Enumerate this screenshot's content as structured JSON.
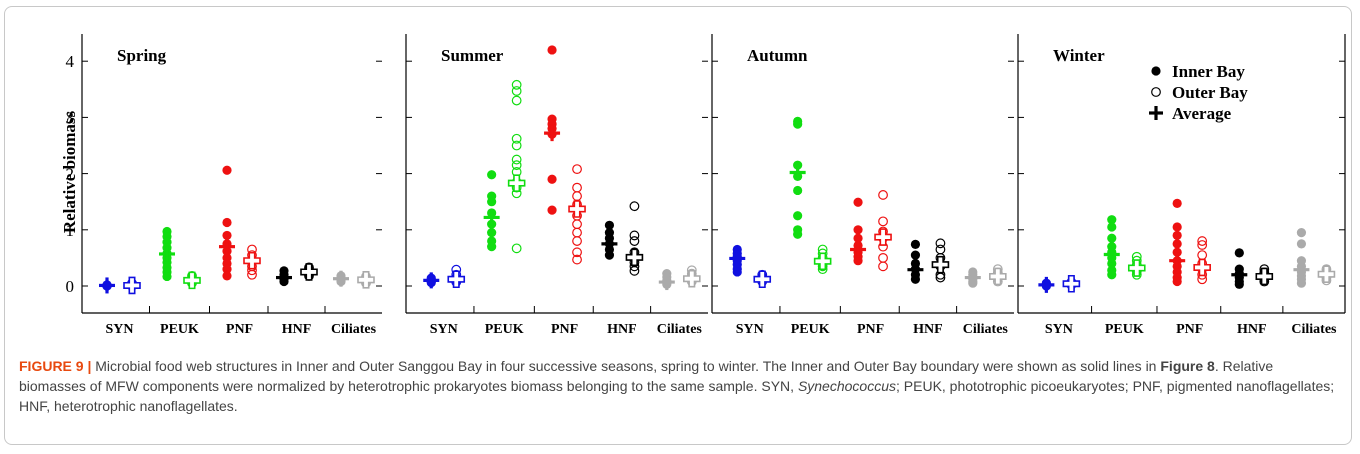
{
  "figure": {
    "caption_label": "FIGURE 9 |",
    "caption_part1": "Microbial food web structures in Inner and Outer Sanggou Bay in four successive seasons, spring to winter. The Inner and Outer Bay boundary were shown as solid lines in",
    "caption_ref": "Figure 8",
    "caption_part2": ". Relative biomasses of MFW components were normalized by heterotrophic prokaryotes biomass belonging to the same sample.",
    "caption_part3": "SYN,",
    "caption_syn": "Synechococcus",
    "caption_part4": "; PEUK, phototrophic picoeukaryotes; PNF, pigmented nanoflagellates; HNF, heterotrophic nanoflagellates."
  },
  "colors": {
    "SYN": "#1010e0",
    "PEUK": "#11dd11",
    "PNF": "#ee1111",
    "HNF": "#000000",
    "Ciliates": "#aaaaaa"
  },
  "chart_data": {
    "type": "scatter",
    "ylabel": "Relative biomass",
    "ylim": [
      0,
      4.5
    ],
    "yticks": [
      "0",
      "1",
      "2",
      "3",
      "4"
    ],
    "categories": [
      "SYN",
      "PEUK",
      "PNF",
      "HNF",
      "Ciliates"
    ],
    "legend": {
      "position": "top-right (Winter panel)",
      "items": [
        "Inner Bay",
        "Outer Bay",
        "Average"
      ]
    },
    "panels": [
      {
        "title": "Spring",
        "groups": [
          {
            "category": "SYN",
            "inner": [
              0.02,
              0.01,
              0.0,
              0.0,
              0.01
            ],
            "inner_avg": 0.01,
            "outer": [
              0.05,
              0.02,
              0.0,
              0.0
            ],
            "outer_avg": 0.01
          },
          {
            "category": "PEUK",
            "inner": [
              0.97,
              0.88,
              0.78,
              0.68,
              0.58,
              0.5,
              0.42,
              0.33,
              0.25,
              0.17
            ],
            "inner_avg": 0.57,
            "outer": [
              0.18,
              0.14,
              0.1,
              0.07,
              0.05
            ],
            "outer_avg": 0.1
          },
          {
            "category": "PNF",
            "inner": [
              2.06,
              1.13,
              0.9,
              0.75,
              0.62,
              0.5,
              0.4,
              0.3,
              0.18
            ],
            "inner_avg": 0.7,
            "outer": [
              0.65,
              0.55,
              0.45,
              0.35,
              0.28,
              0.2
            ],
            "outer_avg": 0.45
          },
          {
            "category": "HNF",
            "inner": [
              0.27,
              0.2,
              0.15,
              0.12,
              0.08
            ],
            "inner_avg": 0.15,
            "outer": [
              0.33,
              0.3,
              0.26,
              0.22,
              0.18
            ],
            "outer_avg": 0.25
          },
          {
            "category": "Ciliates",
            "inner": [
              0.18,
              0.15,
              0.12,
              0.1,
              0.08
            ],
            "inner_avg": 0.13,
            "outer": [
              0.17,
              0.13,
              0.1,
              0.07,
              0.05
            ],
            "outer_avg": 0.11
          }
        ]
      },
      {
        "title": "Summer",
        "groups": [
          {
            "category": "SYN",
            "inner": [
              0.14,
              0.11,
              0.08,
              0.06
            ],
            "inner_avg": 0.1,
            "outer": [
              0.29,
              0.2,
              0.14,
              0.1,
              0.07
            ],
            "outer_avg": 0.12
          },
          {
            "category": "PEUK",
            "inner": [
              1.98,
              1.6,
              1.5,
              1.3,
              1.1,
              0.95,
              0.8,
              0.7
            ],
            "inner_avg": 1.22,
            "outer": [
              3.58,
              3.47,
              3.3,
              2.62,
              2.5,
              2.25,
              2.15,
              2.03,
              1.85,
              1.75,
              1.65,
              0.67
            ],
            "outer_avg": 1.83
          },
          {
            "category": "PNF",
            "inner": [
              4.2,
              2.97,
              2.88,
              2.8,
              2.7,
              1.9,
              1.35
            ],
            "inner_avg": 2.72,
            "outer": [
              2.08,
              1.75,
              1.6,
              1.45,
              1.25,
              1.1,
              0.95,
              0.8,
              0.6,
              0.47
            ],
            "outer_avg": 1.37
          },
          {
            "category": "HNF",
            "inner": [
              1.08,
              0.95,
              0.85,
              0.75,
              0.65,
              0.55
            ],
            "inner_avg": 0.75,
            "outer": [
              1.42,
              0.9,
              0.8,
              0.6,
              0.5,
              0.42,
              0.35,
              0.27
            ],
            "outer_avg": 0.51
          },
          {
            "category": "Ciliates",
            "inner": [
              0.22,
              0.16,
              0.1,
              0.06,
              0.03
            ],
            "inner_avg": 0.07,
            "outer": [
              0.28,
              0.22,
              0.17,
              0.12,
              0.08
            ],
            "outer_avg": 0.13
          }
        ]
      },
      {
        "title": "Autumn",
        "groups": [
          {
            "category": "SYN",
            "inner": [
              0.65,
              0.58,
              0.52,
              0.45,
              0.38,
              0.3,
              0.25
            ],
            "inner_avg": 0.49,
            "outer": [
              0.2,
              0.16,
              0.12,
              0.08
            ],
            "outer_avg": 0.12
          },
          {
            "category": "PEUK",
            "inner": [
              2.93,
              2.88,
              2.15,
              1.95,
              1.7,
              1.25,
              1.0,
              0.92
            ],
            "inner_avg": 2.02,
            "outer": [
              0.65,
              0.58,
              0.5,
              0.45,
              0.4,
              0.35,
              0.3
            ],
            "outer_avg": 0.44
          },
          {
            "category": "PNF",
            "inner": [
              1.49,
              1.0,
              0.85,
              0.72,
              0.6,
              0.52,
              0.45
            ],
            "inner_avg": 0.65,
            "outer": [
              1.62,
              1.15,
              0.97,
              0.85,
              0.7,
              0.5,
              0.35
            ],
            "outer_avg": 0.87
          },
          {
            "category": "HNF",
            "inner": [
              0.74,
              0.55,
              0.4,
              0.3,
              0.2,
              0.12
            ],
            "inner_avg": 0.29,
            "outer": [
              0.76,
              0.65,
              0.5,
              0.35,
              0.2,
              0.15
            ],
            "outer_avg": 0.38
          },
          {
            "category": "Ciliates",
            "inner": [
              0.25,
              0.2,
              0.15,
              0.12,
              0.08,
              0.05
            ],
            "inner_avg": 0.15,
            "outer": [
              0.3,
              0.24,
              0.18,
              0.13,
              0.08
            ],
            "outer_avg": 0.17
          }
        ]
      },
      {
        "title": "Winter",
        "groups": [
          {
            "category": "SYN",
            "inner": [
              0.05,
              0.02,
              0.0
            ],
            "inner_avg": 0.02,
            "outer": [
              0.07,
              0.04,
              0.02
            ],
            "outer_avg": 0.04
          },
          {
            "category": "PEUK",
            "inner": [
              1.18,
              1.05,
              0.85,
              0.7,
              0.6,
              0.5,
              0.4,
              0.28,
              0.2
            ],
            "inner_avg": 0.56,
            "outer": [
              0.52,
              0.45,
              0.38,
              0.32,
              0.26,
              0.2
            ],
            "outer_avg": 0.32
          },
          {
            "category": "PNF",
            "inner": [
              1.47,
              1.05,
              0.9,
              0.75,
              0.6,
              0.45,
              0.35,
              0.25,
              0.15,
              0.08
            ],
            "inner_avg": 0.45,
            "outer": [
              0.8,
              0.73,
              0.55,
              0.4,
              0.3,
              0.2,
              0.12
            ],
            "outer_avg": 0.33
          },
          {
            "category": "HNF",
            "inner": [
              0.59,
              0.3,
              0.22,
              0.15,
              0.08,
              0.03
            ],
            "inner_avg": 0.2,
            "outer": [
              0.3,
              0.24,
              0.18,
              0.12,
              0.08
            ],
            "outer_avg": 0.17
          },
          {
            "category": "Ciliates",
            "inner": [
              0.95,
              0.75,
              0.45,
              0.35,
              0.25,
              0.18,
              0.12,
              0.05
            ],
            "inner_avg": 0.29,
            "outer": [
              0.3,
              0.25,
              0.2,
              0.15,
              0.1
            ],
            "outer_avg": 0.21
          }
        ]
      }
    ]
  }
}
